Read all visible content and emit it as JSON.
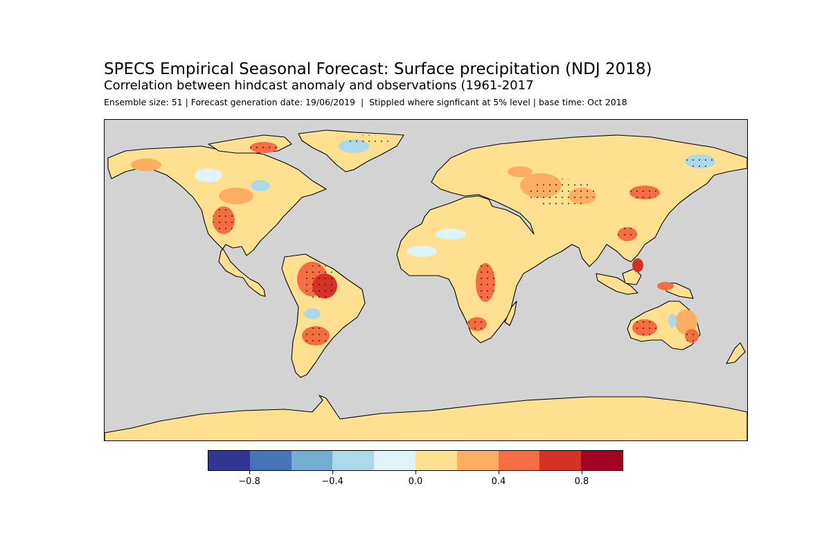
{
  "title": "SPECS Empirical Seasonal Forecast: Surface precipitation (NDJ 2018)",
  "subtitle": "Correlation between hindcast anomaly and observations (1961-2017",
  "info_line": "Ensemble size: 51 | Forecast generation date: 19/06/2019  |  Stippled where signficant at 5% level | base time: Oct 2018",
  "map": {
    "projection": "plate-carree",
    "ocean_color": "#d3d3d3",
    "coastline_color": "#000000",
    "stippling": "significant at 5% level"
  },
  "colorbar": {
    "range": [
      -1.0,
      1.0
    ],
    "step": 0.2,
    "colors": [
      "#313695",
      "#4575b4",
      "#74add1",
      "#abd9e9",
      "#e0f3f8",
      "#fee090",
      "#fdae61",
      "#f46d43",
      "#d73027",
      "#a50026"
    ],
    "ticks": [
      {
        "value": -0.8,
        "label": "−0.8"
      },
      {
        "value": -0.4,
        "label": "−0.4"
      },
      {
        "value": 0.0,
        "label": "0.0"
      },
      {
        "value": 0.4,
        "label": "0.4"
      },
      {
        "value": 0.8,
        "label": "0.8"
      }
    ]
  }
}
